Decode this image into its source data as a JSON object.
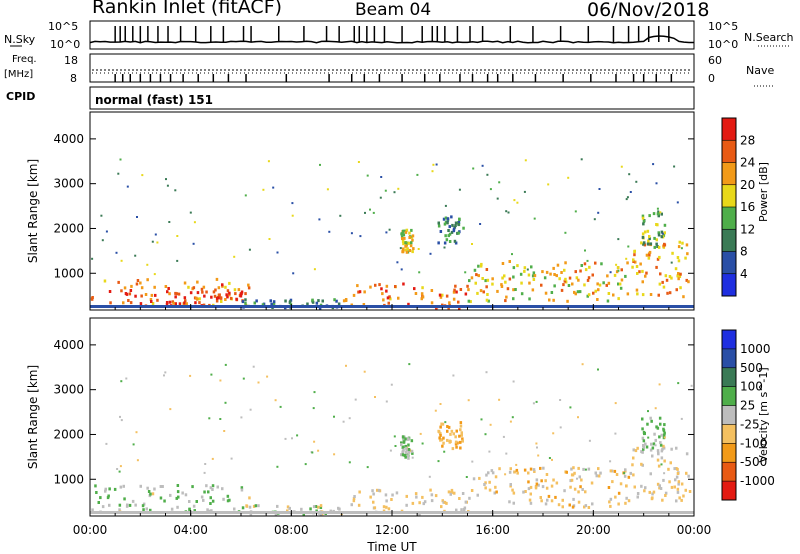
{
  "header": {
    "station": "Rankin Inlet (fitACF)",
    "beam": "Beam 04",
    "date": "06/Nov/2018"
  },
  "noise_panel": {
    "left_label": "N.Sky",
    "right_label": "N.Search",
    "left_ticks": [
      "10^5",
      "10^0"
    ],
    "right_ticks": [
      "10^5",
      "10^0"
    ]
  },
  "freq_panel": {
    "left_label_line1": "Freq.",
    "left_label_line2": "[MHz]",
    "right_label": "Nave",
    "left_ticks": [
      "18",
      "8"
    ],
    "right_ticks": [
      "60",
      "0"
    ]
  },
  "cpid_panel": {
    "label": "CPID",
    "mode": "normal (fast) 151"
  },
  "colors": {
    "power_scale": [
      "#1f2fe0",
      "#2a4fa6",
      "#3a7a55",
      "#4fae4a",
      "#e8d81a",
      "#f29a18",
      "#e85a14",
      "#e31a12"
    ],
    "velocity_scale": [
      "#e31a12",
      "#e85a14",
      "#f29a18",
      "#f4c060",
      "#bdbdbd",
      "#4fae4a",
      "#3a7a55",
      "#2a4fa6",
      "#1f2fe0"
    ]
  },
  "chart_data": [
    {
      "type": "heatmap",
      "title": "",
      "quantity": "Power",
      "xlabel": "Time UT",
      "ylabel": "Slant Range [km]",
      "xlim": [
        0,
        24
      ],
      "ylim": [
        180,
        4600
      ],
      "x_ticks": [
        "00:00",
        "04:00",
        "08:00",
        "12:00",
        "16:00",
        "20:00",
        "00:00"
      ],
      "y_ticks": [
        1000,
        2000,
        3000,
        4000
      ],
      "colorbar": {
        "label": "Power [dB]",
        "ticks": [
          "4",
          "8",
          "12",
          "16",
          "20",
          "24",
          "28"
        ],
        "range": [
          0,
          32
        ]
      },
      "regions": [
        {
          "t": [
            0,
            6.3
          ],
          "r": [
            300,
            900
          ],
          "value": 24
        },
        {
          "t": [
            3,
            6
          ],
          "r": [
            300,
            650
          ],
          "value": 28
        },
        {
          "t": [
            6,
            10
          ],
          "r": [
            250,
            450
          ],
          "value": 10
        },
        {
          "t": [
            10,
            15
          ],
          "r": [
            250,
            800
          ],
          "value": 24
        },
        {
          "t": [
            15,
            21.5
          ],
          "r": [
            400,
            1300
          ],
          "value": 20
        },
        {
          "t": [
            21.5,
            23.8
          ],
          "r": [
            500,
            1800
          ],
          "value": 22
        },
        {
          "t": [
            12.3,
            12.8
          ],
          "r": [
            1500,
            2000
          ],
          "value": 18
        },
        {
          "t": [
            13.8,
            14.8
          ],
          "r": [
            1700,
            2300
          ],
          "value": 10
        },
        {
          "t": [
            21.8,
            22.8
          ],
          "r": [
            1600,
            2400
          ],
          "value": 14
        }
      ]
    },
    {
      "type": "heatmap",
      "title": "",
      "quantity": "Velocity",
      "xlabel": "Time UT",
      "ylabel": "Slant Range [km]",
      "xlim": [
        0,
        24
      ],
      "ylim": [
        180,
        4600
      ],
      "x_ticks": [
        "00:00",
        "04:00",
        "08:00",
        "12:00",
        "16:00",
        "20:00",
        "00:00"
      ],
      "y_ticks": [
        1000,
        2000,
        3000,
        4000
      ],
      "colorbar": {
        "label": "Velocity [m s^-1]",
        "ticks": [
          "-1000",
          "-500",
          "-100",
          "-25",
          "25",
          "100",
          "500",
          "1000"
        ],
        "range": [
          -1200,
          1200
        ]
      },
      "regions": [
        {
          "t": [
            0,
            6.3
          ],
          "r": [
            300,
            900
          ],
          "value": 80
        },
        {
          "t": [
            6,
            10
          ],
          "r": [
            250,
            450
          ],
          "value": 20
        },
        {
          "t": [
            10,
            15
          ],
          "r": [
            250,
            800
          ],
          "value": -150
        },
        {
          "t": [
            15,
            21.5
          ],
          "r": [
            400,
            1300
          ],
          "value": -200
        },
        {
          "t": [
            21.5,
            23.8
          ],
          "r": [
            500,
            1800
          ],
          "value": -120
        },
        {
          "t": [
            12.3,
            12.8
          ],
          "r": [
            1500,
            2000
          ],
          "value": 60
        },
        {
          "t": [
            13.8,
            14.8
          ],
          "r": [
            1700,
            2300
          ],
          "value": -400
        },
        {
          "t": [
            21.8,
            22.8
          ],
          "r": [
            1600,
            2400
          ],
          "value": 150
        }
      ]
    }
  ]
}
